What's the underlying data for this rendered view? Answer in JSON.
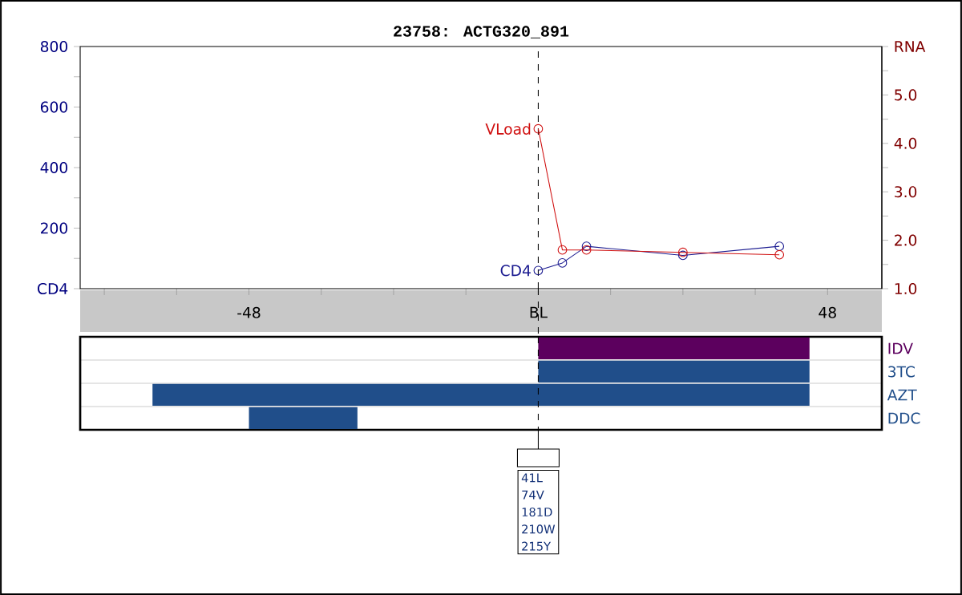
{
  "chart_data": [
    {
      "type": "line",
      "title": "23758: ACTG320_891",
      "x": [
        0,
        4,
        8,
        24,
        40
      ],
      "xlim": [
        -76,
        57
      ],
      "xticks": [
        {
          "value": -72,
          "label": null
        },
        {
          "value": -60,
          "label": null
        },
        -48,
        {
          "value": -36,
          "label": null
        },
        {
          "value": -24,
          "label": null
        },
        {
          "value": -12,
          "label": null
        },
        {
          "value": 0,
          "label": "BL"
        },
        {
          "value": 12,
          "label": null
        },
        {
          "value": 24,
          "label": null
        },
        {
          "value": 36,
          "label": null
        },
        48
      ],
      "ylim": [
        0,
        800
      ],
      "yticks": [
        {
          "value": 0,
          "label": "CD4"
        },
        {
          "value": 100,
          "label": null
        },
        200,
        {
          "value": 300,
          "label": null
        },
        400,
        {
          "value": 500,
          "label": null
        },
        600,
        {
          "value": 700,
          "label": null
        },
        800
      ],
      "y2lim": [
        1,
        6
      ],
      "y2ticks": [
        {
          "value": 1,
          "label": "1.0"
        },
        {
          "value": 1.5,
          "label": null
        },
        {
          "value": 2,
          "label": "2.0"
        },
        {
          "value": 2.5,
          "label": null
        },
        {
          "value": 3,
          "label": "3.0"
        },
        {
          "value": 3.5,
          "label": null
        },
        {
          "value": 4,
          "label": "4.0"
        },
        {
          "value": 4.5,
          "label": null
        },
        {
          "value": 5,
          "label": "5.0"
        },
        {
          "value": 5.5,
          "label": null
        },
        {
          "value": 6,
          "label": "RNA"
        }
      ],
      "series": [
        {
          "name": "CD4",
          "color": "#1a1a90",
          "values": [
            60,
            85,
            140,
            110,
            140
          ]
        },
        {
          "name": "VLoad",
          "color": "#d01010",
          "axis": "y2",
          "values": [
            4.3,
            1.8,
            1.8,
            1.75,
            1.7
          ]
        }
      ],
      "ref_lines": [
        {
          "axis": "x",
          "value": 0,
          "color": "#000000",
          "line_style": "dashed"
        }
      ],
      "marker": "circle",
      "line_style": "solid"
    },
    {
      "type": "bar",
      "orientation": "horizontal",
      "categories": [
        "IDV",
        "3TC",
        "AZT",
        "DDC"
      ],
      "base": [
        0,
        0,
        -64,
        -48
      ],
      "values": [
        45,
        45,
        109,
        18
      ],
      "colors": [
        "#5c005e",
        "#204e8a",
        "#204e8a",
        "#204e8a"
      ],
      "xlim": [
        -76,
        57
      ],
      "tick_labels": "y",
      "grid": "y",
      "ref_lines": [
        {
          "axis": "x",
          "value": 0,
          "color": "#000000",
          "line_style": "dashed"
        }
      ],
      "annotations": [
        "41L",
        "74V",
        "181D",
        "210W",
        "215Y"
      ]
    }
  ]
}
